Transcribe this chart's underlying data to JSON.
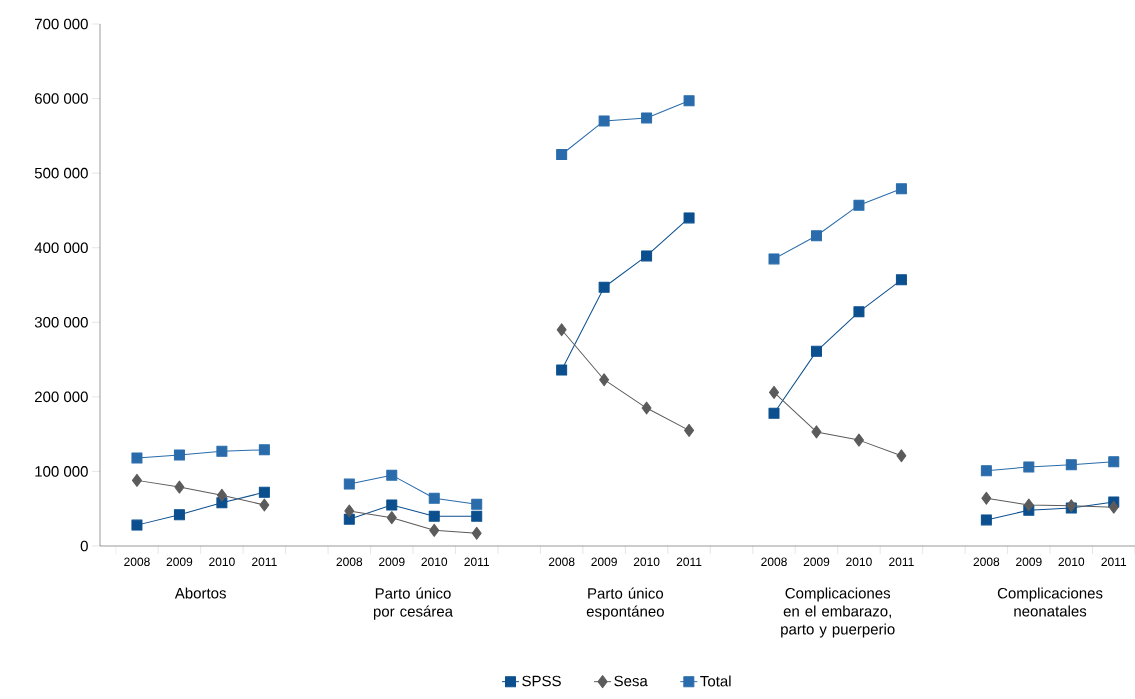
{
  "chart_data": {
    "type": "line",
    "categories": [
      "2008",
      "2009",
      "2010",
      "2011",
      null,
      "2008",
      "2009",
      "2010",
      "2011",
      null,
      "2008",
      "2009",
      "2010",
      "2011",
      null,
      "2008",
      "2009",
      "2010",
      "2011",
      null,
      "2008",
      "2009",
      "2010",
      "2011"
    ],
    "series": [
      {
        "name": "SPSS",
        "color": "#0b4f8e",
        "marker": "square",
        "values": [
          28000,
          42000,
          58000,
          72000,
          null,
          36000,
          55000,
          40000,
          40000,
          null,
          236000,
          347000,
          389000,
          440000,
          null,
          178000,
          261000,
          314000,
          357000,
          null,
          35000,
          48000,
          51000,
          59000
        ]
      },
      {
        "name": "Sesa",
        "color": "#5b5b5b",
        "marker": "diamond",
        "values": [
          88000,
          79000,
          68000,
          55000,
          null,
          47000,
          38000,
          21000,
          17000,
          null,
          290000,
          223000,
          185000,
          155000,
          null,
          206000,
          153000,
          142000,
          121000,
          null,
          64000,
          55000,
          54000,
          52000
        ]
      },
      {
        "name": "Total",
        "color": "#2a6cab",
        "marker": "square",
        "values": [
          118000,
          122000,
          127000,
          129000,
          null,
          83000,
          95000,
          64000,
          56000,
          null,
          525000,
          570000,
          574000,
          597000,
          null,
          385000,
          416000,
          457000,
          479000,
          null,
          101000,
          106000,
          109000,
          113000
        ]
      }
    ],
    "ylim": [
      0,
      700000
    ],
    "yticks": [
      {
        "value": 0,
        "label": "0"
      },
      {
        "value": 100000,
        "label": "100 000"
      },
      {
        "value": 200000,
        "label": "200 000"
      },
      {
        "value": 300000,
        "label": "300 000"
      },
      {
        "value": 400000,
        "label": "400 000"
      },
      {
        "value": 500000,
        "label": "500 000"
      },
      {
        "value": 600000,
        "label": "600 000"
      },
      {
        "value": 700000,
        "label": "700 000"
      }
    ],
    "annotations": [
      "Abortos",
      "Parto único por cesárea",
      "Parto único espontáneo",
      "Complicaciones en el embarazo, parto y puerperio",
      "Complicaciones neonatales"
    ],
    "grid": false,
    "legend": "bottom"
  }
}
